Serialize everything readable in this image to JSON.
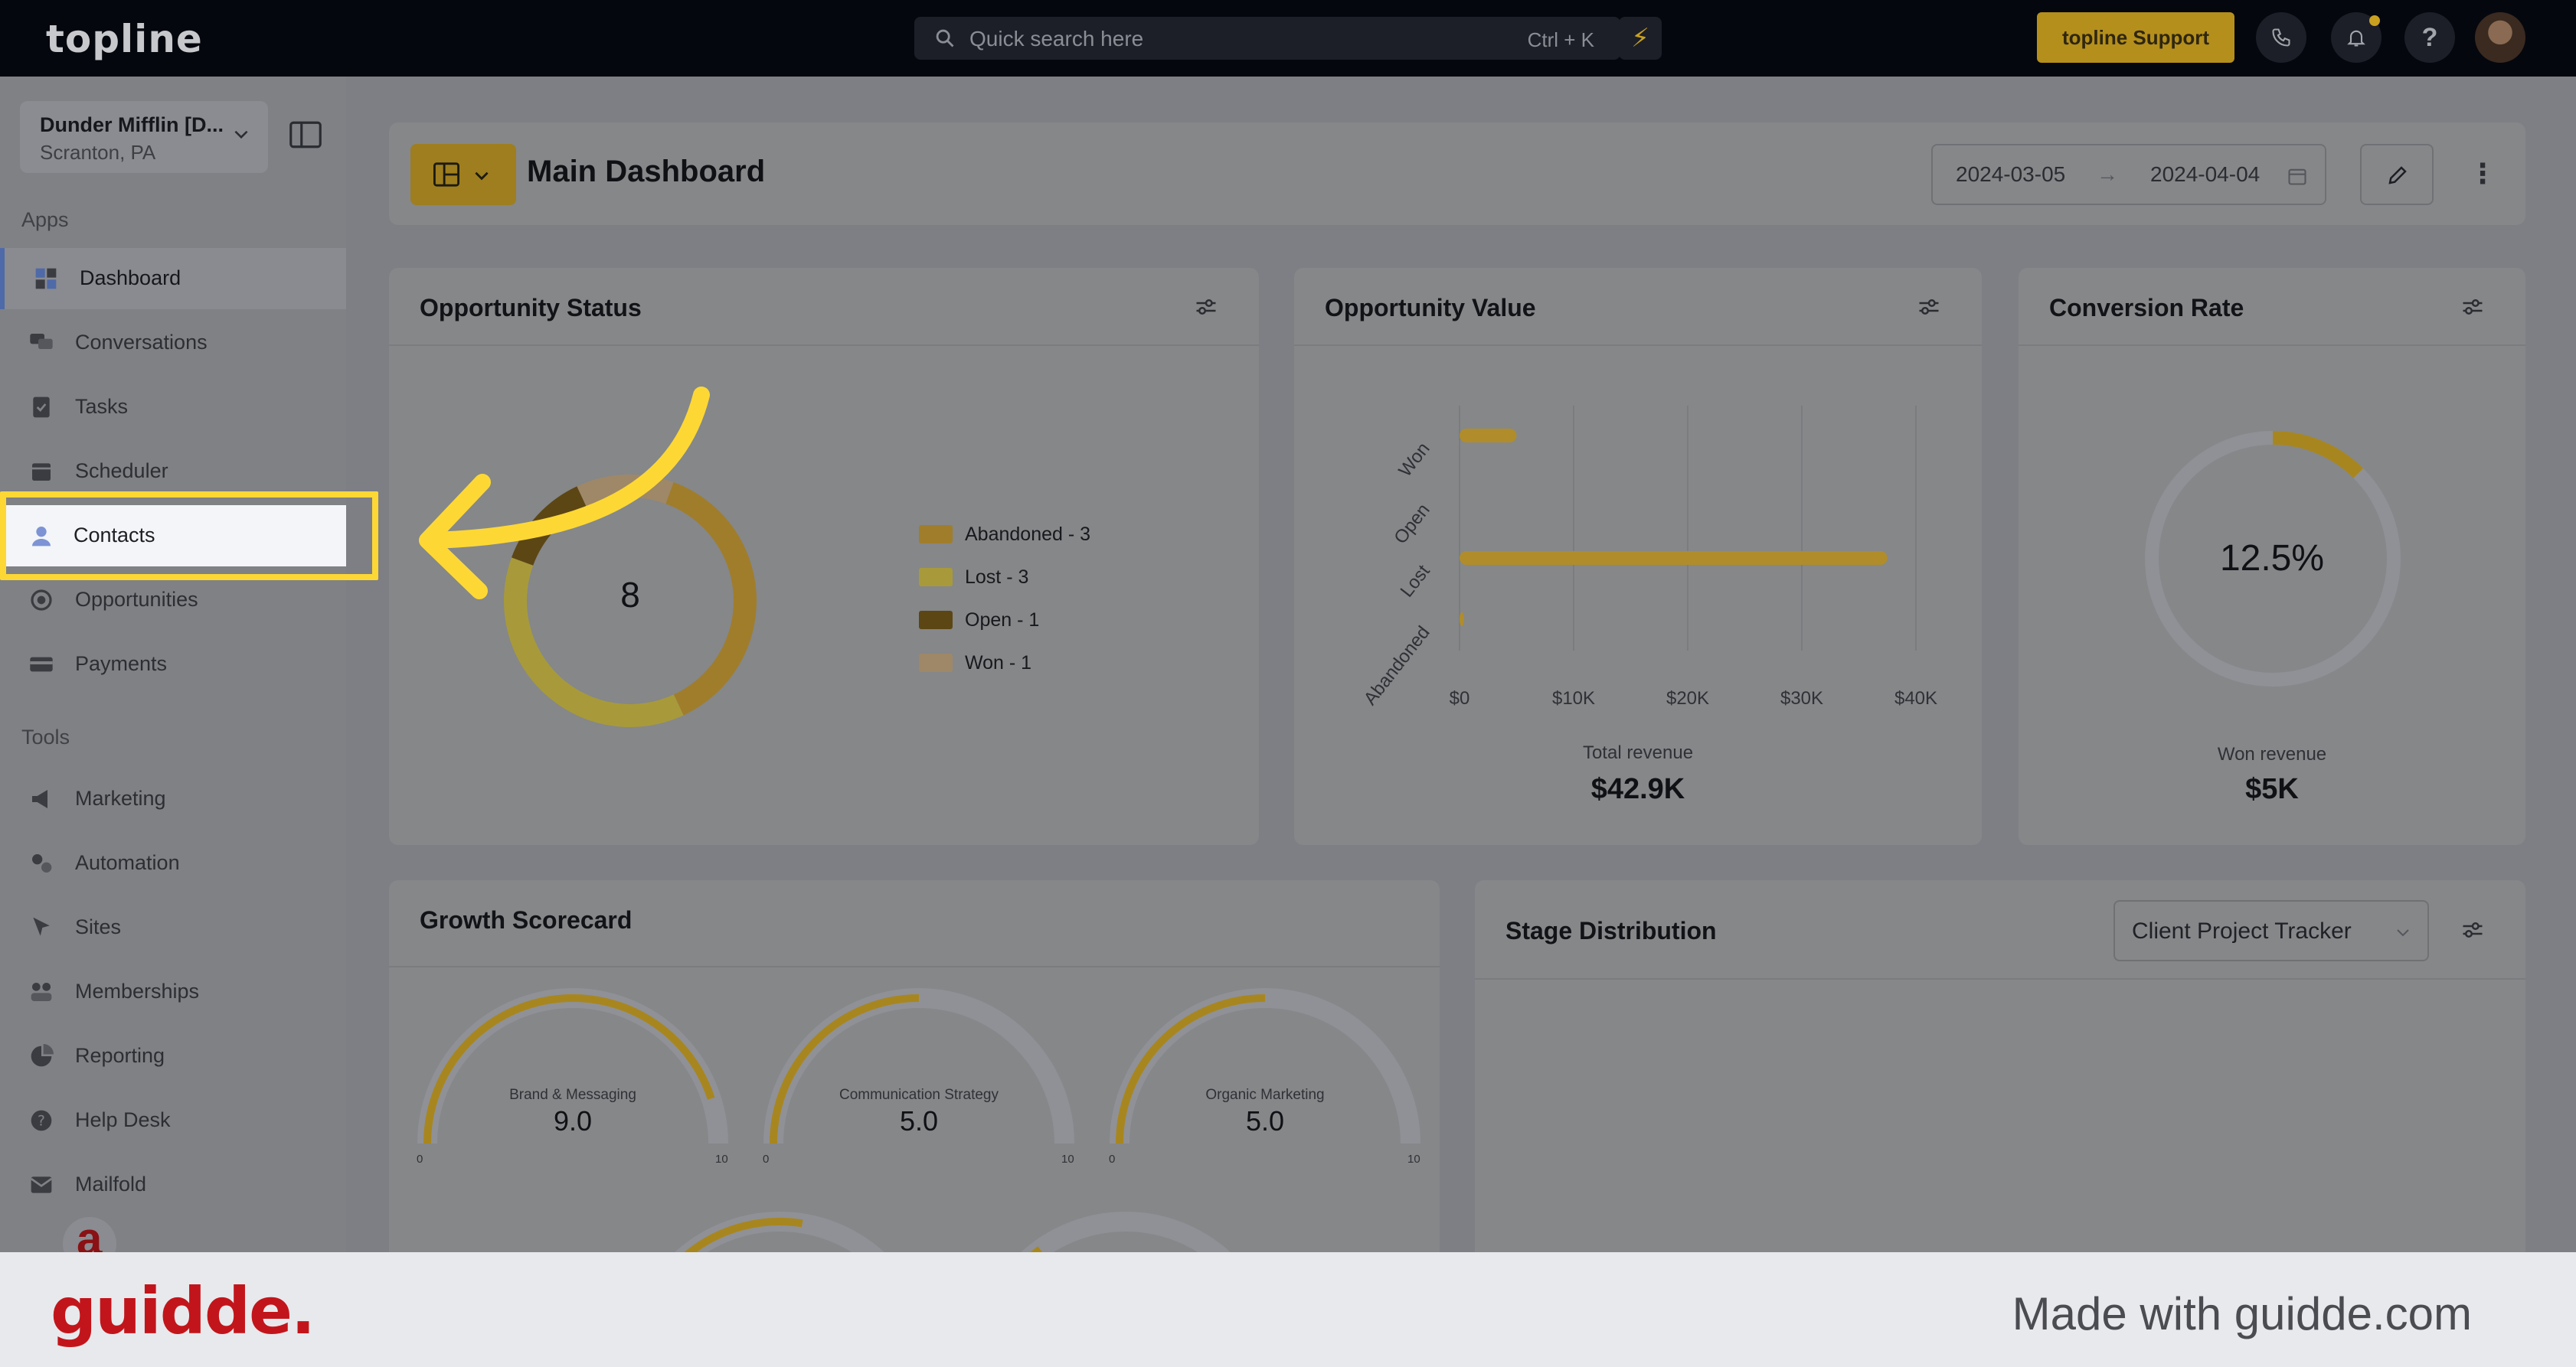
{
  "topbar": {
    "logo": "topline",
    "search_placeholder": "Quick search here",
    "search_shortcut": "Ctrl + K",
    "support_label": "topline Support",
    "help_label": "?"
  },
  "sidebar": {
    "org_name": "Dunder Mifflin [D...",
    "org_location": "Scranton, PA",
    "apps_label": "Apps",
    "tools_label": "Tools",
    "apps": [
      {
        "label": "Dashboard",
        "icon": "dashboard-icon"
      },
      {
        "label": "Conversations",
        "icon": "chat-icon"
      },
      {
        "label": "Tasks",
        "icon": "tasks-icon"
      },
      {
        "label": "Scheduler",
        "icon": "calendar-icon"
      },
      {
        "label": "Contacts",
        "icon": "person-icon"
      },
      {
        "label": "Opportunities",
        "icon": "target-icon"
      },
      {
        "label": "Payments",
        "icon": "card-icon"
      }
    ],
    "tools": [
      {
        "label": "Marketing",
        "icon": "megaphone-icon"
      },
      {
        "label": "Automation",
        "icon": "gears-icon"
      },
      {
        "label": "Sites",
        "icon": "cursor-icon"
      },
      {
        "label": "Memberships",
        "icon": "members-icon"
      },
      {
        "label": "Reporting",
        "icon": "pie-icon"
      },
      {
        "label": "Help Desk",
        "icon": "help-icon"
      },
      {
        "label": "Mailfold",
        "icon": "mail-icon"
      }
    ],
    "active_item": "Dashboard",
    "highlighted_item": "Contacts"
  },
  "header": {
    "title": "Main Dashboard",
    "date_from": "2024-03-05",
    "date_to": "2024-04-04"
  },
  "opportunity_status": {
    "title": "Opportunity Status",
    "total": "8",
    "legend": [
      {
        "label": "Abandoned - 3",
        "value": 3,
        "color": "#a07d2b"
      },
      {
        "label": "Lost - 3",
        "value": 3,
        "color": "#a89a3a"
      },
      {
        "label": "Open - 1",
        "value": 1,
        "color": "#5c4614"
      },
      {
        "label": "Won - 1",
        "value": 1,
        "color": "#9f8868"
      }
    ]
  },
  "opportunity_value": {
    "title": "Opportunity Value",
    "total_label": "Total revenue",
    "total_value": "$42.9K"
  },
  "conversion_rate": {
    "title": "Conversion Rate",
    "value": "12.5%",
    "percent": 12.5,
    "won_label": "Won revenue",
    "won_value": "$5K"
  },
  "growth_scorecard": {
    "title": "Growth Scorecard",
    "min_label": "0",
    "max_label": "10",
    "gauges": [
      {
        "label": "Brand & Messaging",
        "value": "9.0",
        "score": 9.0
      },
      {
        "label": "Communication Strategy",
        "value": "5.0",
        "score": 5.0
      },
      {
        "label": "Organic Marketing",
        "value": "5.0",
        "score": 5.0
      }
    ]
  },
  "stage_distribution": {
    "title": "Stage Distribution",
    "pipeline": "Client Project Tracker"
  },
  "footer": {
    "brand": "guidde.",
    "made_with": "Made with guidde.com"
  },
  "chart_data": [
    {
      "type": "pie",
      "title": "Opportunity Status",
      "categories": [
        "Abandoned",
        "Lost",
        "Open",
        "Won"
      ],
      "values": [
        3,
        3,
        1,
        1
      ]
    },
    {
      "type": "bar",
      "title": "Opportunity Value",
      "orientation": "horizontal",
      "categories": [
        "Won",
        "Open",
        "Lost",
        "Abandoned"
      ],
      "values": [
        5000,
        0,
        37500,
        400
      ],
      "xlim": [
        0,
        40000
      ],
      "x_ticks": [
        "$0",
        "$10K",
        "$20K",
        "$30K",
        "$40K"
      ],
      "grid": true,
      "color": "#b08d2a"
    }
  ]
}
